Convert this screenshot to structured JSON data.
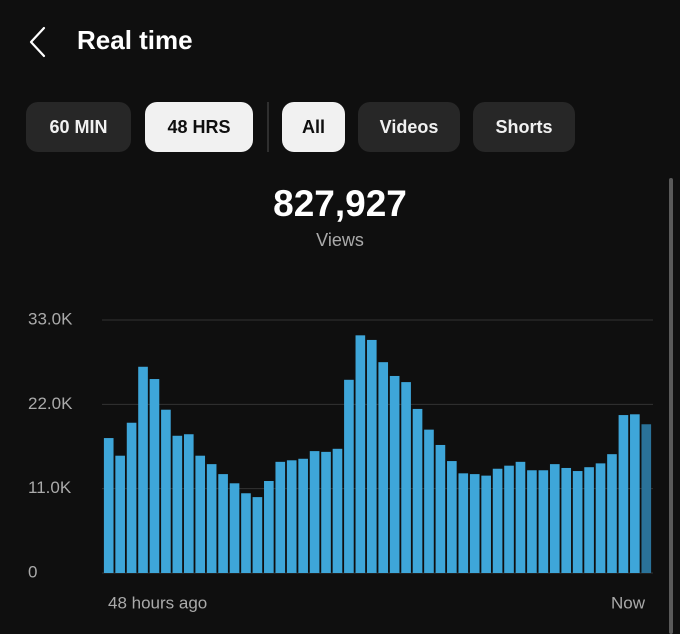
{
  "header": {
    "title": "Real time"
  },
  "filters": [
    {
      "label": "60 MIN",
      "selected": false
    },
    {
      "label": "48 HRS",
      "selected": true
    },
    {
      "label": "All",
      "selected": true
    },
    {
      "label": "Videos",
      "selected": false
    },
    {
      "label": "Shorts",
      "selected": false
    }
  ],
  "summary": {
    "total": "827,927",
    "label": "Views"
  },
  "chart_data": {
    "type": "bar",
    "categories": [
      "48 hours ago",
      null,
      null,
      null,
      null,
      null,
      null,
      null,
      null,
      null,
      null,
      null,
      null,
      null,
      null,
      null,
      null,
      null,
      null,
      null,
      null,
      null,
      null,
      null,
      null,
      null,
      null,
      null,
      null,
      null,
      null,
      null,
      null,
      null,
      null,
      null,
      null,
      null,
      null,
      null,
      null,
      null,
      null,
      null,
      null,
      null,
      null,
      "Now"
    ],
    "values": [
      17600,
      15300,
      19600,
      26900,
      25300,
      21300,
      17900,
      18100,
      15300,
      14200,
      12900,
      11700,
      10400,
      9900,
      12000,
      14500,
      14700,
      14900,
      15900,
      15800,
      16200,
      25200,
      31000,
      30400,
      27500,
      25700,
      24900,
      21400,
      18700,
      16700,
      14600,
      13000,
      12900,
      12700,
      13600,
      14000,
      14500,
      13400,
      13400,
      14200,
      13700,
      13300,
      13800,
      14300,
      15500,
      20600,
      20700,
      19400
    ],
    "color": "#3ea6d9",
    "last_color": "#2a7299",
    "ylim": [
      0,
      33000
    ],
    "yticks": [
      0,
      {
        "value": 11000,
        "label": "11.0K"
      },
      {
        "value": 22000,
        "label": "22.0K"
      },
      {
        "value": 33000,
        "label": "33.0K"
      }
    ],
    "grid": true
  }
}
